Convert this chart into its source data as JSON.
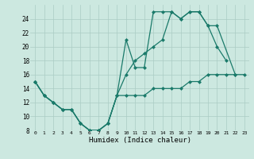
{
  "xlabel": "Humidex (Indice chaleur)",
  "bg_color": "#cce8e0",
  "grid_color": "#aaccc4",
  "line_color": "#1a7a6a",
  "xlim": [
    -0.5,
    23.5
  ],
  "ylim": [
    8,
    26
  ],
  "xticks": [
    0,
    1,
    2,
    3,
    4,
    5,
    6,
    7,
    8,
    9,
    10,
    11,
    12,
    13,
    14,
    15,
    16,
    17,
    18,
    19,
    20,
    21,
    22,
    23
  ],
  "yticks": [
    8,
    10,
    12,
    14,
    16,
    18,
    20,
    22,
    24
  ],
  "s1_x": [
    0,
    1,
    2,
    3,
    4,
    5,
    6,
    7,
    8,
    9,
    10,
    11,
    12,
    13,
    14,
    15,
    16,
    17,
    18,
    19,
    20,
    21
  ],
  "s1_y": [
    15,
    13,
    12,
    11,
    11,
    9,
    8,
    8,
    9,
    13,
    21,
    17,
    17,
    25,
    25,
    25,
    24,
    25,
    25,
    23,
    20,
    18
  ],
  "s2_x": [
    0,
    1,
    2,
    3,
    4,
    5,
    6,
    7,
    8,
    9,
    10,
    11,
    12,
    13,
    14,
    15,
    16,
    17,
    18,
    19,
    20,
    22
  ],
  "s2_y": [
    15,
    13,
    12,
    11,
    11,
    9,
    8,
    8,
    9,
    13,
    16,
    18,
    19,
    20,
    21,
    25,
    24,
    25,
    25,
    23,
    23,
    16
  ],
  "s3_x": [
    0,
    1,
    2,
    3,
    4,
    5,
    6,
    7,
    8,
    9,
    10,
    11,
    12,
    13,
    14,
    15,
    16,
    17,
    18,
    19,
    20,
    21,
    22,
    23
  ],
  "s3_y": [
    15,
    13,
    12,
    11,
    11,
    9,
    8,
    8,
    9,
    13,
    13,
    13,
    13,
    14,
    14,
    14,
    14,
    15,
    15,
    16,
    16,
    16,
    16,
    16
  ]
}
